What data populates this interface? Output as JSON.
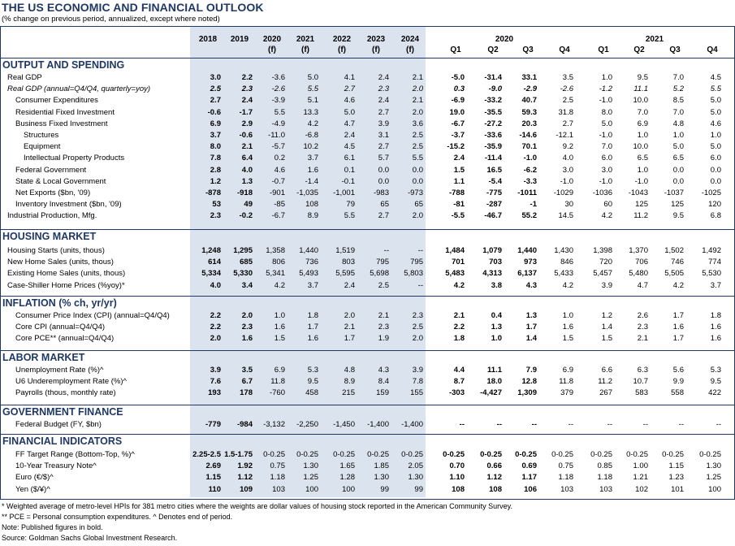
{
  "title": "THE US ECONOMIC AND FINANCIAL OUTLOOK",
  "subtitle": "(% change on previous period, annualized, except where noted)",
  "headers": {
    "annual_years": [
      "2018",
      "2019",
      "2020",
      "2021",
      "2022",
      "2023",
      "2024"
    ],
    "annual_sub": [
      "",
      "",
      "(f)",
      "(f)",
      "(f)",
      "(f)",
      "(f)"
    ],
    "year_2020": "2020",
    "year_2021": "2021",
    "quarters": [
      "Q1",
      "Q2",
      "Q3",
      "Q4",
      "Q1",
      "Q2",
      "Q3",
      "Q4"
    ]
  },
  "sections": [
    {
      "title": "OUTPUT AND SPENDING",
      "rows": [
        {
          "label": "Real GDP",
          "indent": 0,
          "italic": false,
          "values": [
            "3.0",
            "2.2",
            "-3.6",
            "5.0",
            "4.1",
            "2.4",
            "2.1",
            "-5.0",
            "-31.4",
            "33.1",
            "3.5",
            "1.0",
            "9.5",
            "7.0",
            "4.5"
          ]
        },
        {
          "label": "Real GDP (annual=Q4/Q4, quarterly=yoy)",
          "indent": 0,
          "italic": true,
          "values": [
            "2.5",
            "2.3",
            "-2.6",
            "5.5",
            "2.7",
            "2.3",
            "2.0",
            "0.3",
            "-9.0",
            "-2.9",
            "-2.6",
            "-1.2",
            "11.1",
            "5.2",
            "5.5"
          ]
        },
        {
          "label": "Consumer Expenditures",
          "indent": 1,
          "italic": false,
          "values": [
            "2.7",
            "2.4",
            "-3.9",
            "5.1",
            "4.6",
            "2.4",
            "2.1",
            "-6.9",
            "-33.2",
            "40.7",
            "2.5",
            "-1.0",
            "10.0",
            "8.5",
            "5.0"
          ]
        },
        {
          "label": "Residential Fixed Investment",
          "indent": 1,
          "italic": false,
          "values": [
            "-0.6",
            "-1.7",
            "5.5",
            "13.3",
            "5.0",
            "2.7",
            "2.0",
            "19.0",
            "-35.5",
            "59.3",
            "31.8",
            "8.0",
            "7.0",
            "7.0",
            "5.0"
          ]
        },
        {
          "label": "Business Fixed Investment",
          "indent": 1,
          "italic": false,
          "values": [
            "6.9",
            "2.9",
            "-4.9",
            "4.2",
            "4.7",
            "3.9",
            "3.6",
            "-6.7",
            "-27.2",
            "20.3",
            "2.7",
            "5.0",
            "6.9",
            "4.8",
            "4.6"
          ]
        },
        {
          "label": "Structures",
          "indent": 2,
          "italic": false,
          "values": [
            "3.7",
            "-0.6",
            "-11.0",
            "-6.8",
            "2.4",
            "3.1",
            "2.5",
            "-3.7",
            "-33.6",
            "-14.6",
            "-12.1",
            "-1.0",
            "1.0",
            "1.0",
            "1.0"
          ]
        },
        {
          "label": "Equipment",
          "indent": 2,
          "italic": false,
          "values": [
            "8.0",
            "2.1",
            "-5.7",
            "10.2",
            "4.5",
            "2.7",
            "2.5",
            "-15.2",
            "-35.9",
            "70.1",
            "9.2",
            "7.0",
            "10.0",
            "5.0",
            "5.0"
          ]
        },
        {
          "label": "Intellectual Property Products",
          "indent": 2,
          "italic": false,
          "values": [
            "7.8",
            "6.4",
            "0.2",
            "3.7",
            "6.1",
            "5.7",
            "5.5",
            "2.4",
            "-11.4",
            "-1.0",
            "4.0",
            "6.0",
            "6.5",
            "6.5",
            "6.0"
          ]
        },
        {
          "label": "Federal Government",
          "indent": 1,
          "italic": false,
          "values": [
            "2.8",
            "4.0",
            "4.6",
            "1.6",
            "0.1",
            "0.0",
            "0.0",
            "1.5",
            "16.5",
            "-6.2",
            "3.0",
            "3.0",
            "1.0",
            "0.0",
            "0.0"
          ]
        },
        {
          "label": "State & Local Government",
          "indent": 1,
          "italic": false,
          "values": [
            "1.2",
            "1.3",
            "-0.7",
            "-1.4",
            "-0.1",
            "0.0",
            "0.0",
            "1.1",
            "-5.4",
            "-3.3",
            "-1.0",
            "-1.0",
            "-1.0",
            "0.0",
            "0.0"
          ]
        },
        {
          "label": "Net Exports ($bn, '09)",
          "indent": 1,
          "italic": false,
          "values": [
            "-878",
            "-918",
            "-901",
            "-1,035",
            "-1,001",
            "-983",
            "-973",
            "-788",
            "-775",
            "-1011",
            "-1029",
            "-1036",
            "-1043",
            "-1037",
            "-1025"
          ]
        },
        {
          "label": "Inventory Investment ($bn, '09)",
          "indent": 1,
          "italic": false,
          "values": [
            "53",
            "49",
            "-85",
            "108",
            "79",
            "65",
            "65",
            "-81",
            "-287",
            "-1",
            "30",
            "60",
            "125",
            "125",
            "120"
          ]
        },
        {
          "label": "Industrial Production, Mfg.",
          "indent": 0,
          "italic": false,
          "values": [
            "2.3",
            "-0.2",
            "-6.7",
            "8.9",
            "5.5",
            "2.7",
            "2.0",
            "-5.5",
            "-46.7",
            "55.2",
            "14.5",
            "4.2",
            "11.2",
            "9.5",
            "6.8"
          ]
        }
      ]
    },
    {
      "title": "HOUSING MARKET",
      "rows": [
        {
          "label": "Housing Starts (units, thous)",
          "indent": 0,
          "italic": false,
          "values": [
            "1,248",
            "1,295",
            "1,358",
            "1,440",
            "1,519",
            "--",
            "--",
            "1,484",
            "1,079",
            "1,440",
            "1,430",
            "1,398",
            "1,370",
            "1,502",
            "1,492"
          ]
        },
        {
          "label": "New Home Sales (units, thous)",
          "indent": 0,
          "italic": false,
          "values": [
            "614",
            "685",
            "806",
            "736",
            "803",
            "795",
            "795",
            "701",
            "703",
            "973",
            "846",
            "720",
            "706",
            "746",
            "774"
          ]
        },
        {
          "label": "Existing Home Sales (units, thous)",
          "indent": 0,
          "italic": false,
          "values": [
            "5,334",
            "5,330",
            "5,341",
            "5,493",
            "5,595",
            "5,698",
            "5,803",
            "5,483",
            "4,313",
            "6,137",
            "5,433",
            "5,457",
            "5,480",
            "5,505",
            "5,530"
          ]
        },
        {
          "label": "Case-Shiller Home Prices (%yoy)*",
          "indent": 0,
          "italic": false,
          "values": [
            "4.0",
            "3.4",
            "4.2",
            "3.7",
            "2.4",
            "2.5",
            "--",
            "4.2",
            "3.8",
            "4.3",
            "4.2",
            "3.9",
            "4.7",
            "4.2",
            "3.7"
          ]
        }
      ]
    },
    {
      "title": "INFLATION (% ch, yr/yr)",
      "rows": [
        {
          "label": "Consumer Price Index (CPI) (annual=Q4/Q4)",
          "indent": 1,
          "italic": false,
          "values": [
            "2.2",
            "2.0",
            "1.0",
            "1.8",
            "2.0",
            "2.1",
            "2.3",
            "2.1",
            "0.4",
            "1.3",
            "1.0",
            "1.2",
            "2.6",
            "1.7",
            "1.8"
          ]
        },
        {
          "label": "Core CPI (annual=Q4/Q4)",
          "indent": 1,
          "italic": false,
          "values": [
            "2.2",
            "2.3",
            "1.6",
            "1.7",
            "2.1",
            "2.3",
            "2.5",
            "2.2",
            "1.3",
            "1.7",
            "1.6",
            "1.4",
            "2.3",
            "1.6",
            "1.6"
          ]
        },
        {
          "label": "Core PCE** (annual=Q4/Q4)",
          "indent": 1,
          "italic": false,
          "values": [
            "2.0",
            "1.6",
            "1.5",
            "1.6",
            "1.7",
            "1.9",
            "2.0",
            "1.8",
            "1.0",
            "1.4",
            "1.5",
            "1.5",
            "2.1",
            "1.7",
            "1.6"
          ]
        }
      ]
    },
    {
      "title": "LABOR MARKET",
      "rows": [
        {
          "label": "Unemployment Rate (%)^",
          "indent": 1,
          "italic": false,
          "values": [
            "3.9",
            "3.5",
            "6.9",
            "5.3",
            "4.8",
            "4.3",
            "3.9",
            "4.4",
            "11.1",
            "7.9",
            "6.9",
            "6.6",
            "6.3",
            "5.6",
            "5.3"
          ]
        },
        {
          "label": "U6 Underemployment Rate (%)^",
          "indent": 1,
          "italic": false,
          "values": [
            "7.6",
            "6.7",
            "11.8",
            "9.5",
            "8.9",
            "8.4",
            "7.8",
            "8.7",
            "18.0",
            "12.8",
            "11.8",
            "11.2",
            "10.7",
            "9.9",
            "9.5"
          ]
        },
        {
          "label": "Payrolls (thous, monthly rate)",
          "indent": 1,
          "italic": false,
          "values": [
            "193",
            "178",
            "-760",
            "458",
            "215",
            "159",
            "155",
            "-303",
            "-4,427",
            "1,309",
            "379",
            "267",
            "583",
            "558",
            "422"
          ]
        }
      ]
    },
    {
      "title": "GOVERNMENT FINANCE",
      "rows": [
        {
          "label": "Federal Budget (FY, $bn)",
          "indent": 1,
          "italic": false,
          "values": [
            "-779",
            "-984",
            "-3,132",
            "-2,250",
            "-1,450",
            "-1,400",
            "-1,400",
            "--",
            "--",
            "--",
            "--",
            "--",
            "--",
            "--",
            "--"
          ]
        }
      ]
    },
    {
      "title": "FINANCIAL INDICATORS",
      "rows": [
        {
          "label": "FF Target Range (Bottom-Top, %)^",
          "indent": 1,
          "italic": false,
          "values": [
            "2.25-2.5",
            "1.5-1.75",
            "0-0.25",
            "0-0.25",
            "0-0.25",
            "0-0.25",
            "0-0.25",
            "0-0.25",
            "0-0.25",
            "0-0.25",
            "0-0.25",
            "0-0.25",
            "0-0.25",
            "0-0.25",
            "0-0.25"
          ]
        },
        {
          "label": "10-Year Treasury Note^",
          "indent": 1,
          "italic": false,
          "values": [
            "2.69",
            "1.92",
            "0.75",
            "1.30",
            "1.65",
            "1.85",
            "2.05",
            "0.70",
            "0.66",
            "0.69",
            "0.75",
            "0.85",
            "1.00",
            "1.15",
            "1.30"
          ]
        },
        {
          "label": "Euro (€/$)^",
          "indent": 1,
          "italic": false,
          "values": [
            "1.15",
            "1.12",
            "1.18",
            "1.25",
            "1.28",
            "1.30",
            "1.30",
            "1.10",
            "1.12",
            "1.17",
            "1.18",
            "1.18",
            "1.21",
            "1.23",
            "1.25"
          ]
        },
        {
          "label": "Yen ($/¥)^",
          "indent": 1,
          "italic": false,
          "values": [
            "110",
            "109",
            "103",
            "100",
            "100",
            "99",
            "99",
            "108",
            "108",
            "106",
            "103",
            "103",
            "102",
            "101",
            "100"
          ]
        }
      ]
    }
  ],
  "footnotes": [
    "* Weighted average of metro-level HPIs for 381 metro cities where the weights are dollar values of housing stock reported in the American Community Survey.",
    "** PCE = Personal consumption expenditures.  ^ Denotes end of period.",
    "Note: Published figures in bold.",
    "Source: Goldman Sachs Global Investment Research."
  ],
  "colors": {
    "accent": "#1f3864",
    "shade": "#dbe3ee"
  }
}
